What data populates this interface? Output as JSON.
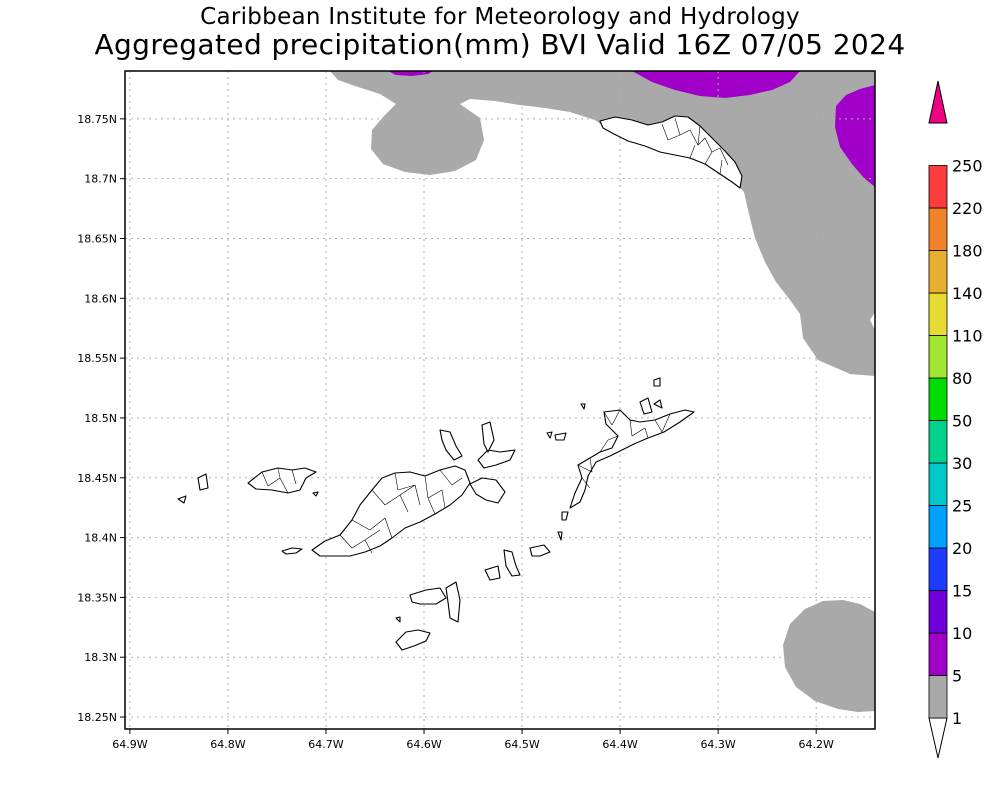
{
  "title_line1": "Caribbean Institute for Meteorology and Hydrology",
  "title_line2": "Aggregated precipitation(mm) BVI Valid 16Z 07/05 2024",
  "map": {
    "lat_min": 18.24,
    "lat_max": 18.79,
    "lon_min": -64.905,
    "lon_max": -64.14,
    "grid": "on",
    "x_ticks": [
      {
        "value": -64.9,
        "label": "64.9W"
      },
      {
        "value": -64.8,
        "label": "64.8W"
      },
      {
        "value": -64.7,
        "label": "64.7W"
      },
      {
        "value": -64.6,
        "label": "64.6W"
      },
      {
        "value": -64.5,
        "label": "64.5W"
      },
      {
        "value": -64.4,
        "label": "64.4W"
      },
      {
        "value": -64.3,
        "label": "64.3W"
      },
      {
        "value": -64.2,
        "label": "64.2W"
      }
    ],
    "y_ticks": [
      {
        "value": 18.75,
        "label": "18.75N"
      },
      {
        "value": 18.7,
        "label": "18.7N"
      },
      {
        "value": 18.65,
        "label": "18.65N"
      },
      {
        "value": 18.6,
        "label": "18.6N"
      },
      {
        "value": 18.55,
        "label": "18.55N"
      },
      {
        "value": 18.5,
        "label": "18.5N"
      },
      {
        "value": 18.45,
        "label": "18.45N"
      },
      {
        "value": 18.4,
        "label": "18.4N"
      },
      {
        "value": 18.35,
        "label": "18.35N"
      },
      {
        "value": 18.3,
        "label": "18.3N"
      },
      {
        "value": 18.25,
        "label": "18.25N"
      }
    ],
    "precip_areas": [
      {
        "name": "north-rain-band",
        "level": "1-5",
        "color": "#a9a9a9"
      },
      {
        "name": "northwest-lobe",
        "level": "1-5",
        "color": "#a9a9a9"
      },
      {
        "name": "southeast-blob",
        "level": "1-5",
        "color": "#a9a9a9"
      },
      {
        "name": "north-core",
        "level": "5-10",
        "color": "#a000c8"
      },
      {
        "name": "northeast-core",
        "level": "5-10",
        "color": "#a000c8"
      }
    ]
  },
  "colorbar": {
    "levels": [
      {
        "label": "1",
        "color": "#a9a9a9"
      },
      {
        "label": "5",
        "color": "#a000c8"
      },
      {
        "label": "10",
        "color": "#6e00dc"
      },
      {
        "label": "15",
        "color": "#1e3cff"
      },
      {
        "label": "20",
        "color": "#00a0ff"
      },
      {
        "label": "25",
        "color": "#00c8c8"
      },
      {
        "label": "30",
        "color": "#00d28c"
      },
      {
        "label": "50",
        "color": "#00dc00"
      },
      {
        "label": "80",
        "color": "#a0e632"
      },
      {
        "label": "110",
        "color": "#e6dc32"
      },
      {
        "label": "140",
        "color": "#e6af2d"
      },
      {
        "label": "180",
        "color": "#f08228"
      },
      {
        "label": "220",
        "color": "#fa3c3c"
      },
      {
        "label": "250",
        "color": "#f00082"
      }
    ],
    "low_end_color": "#ffffff",
    "high_end_color": "#f00082"
  }
}
